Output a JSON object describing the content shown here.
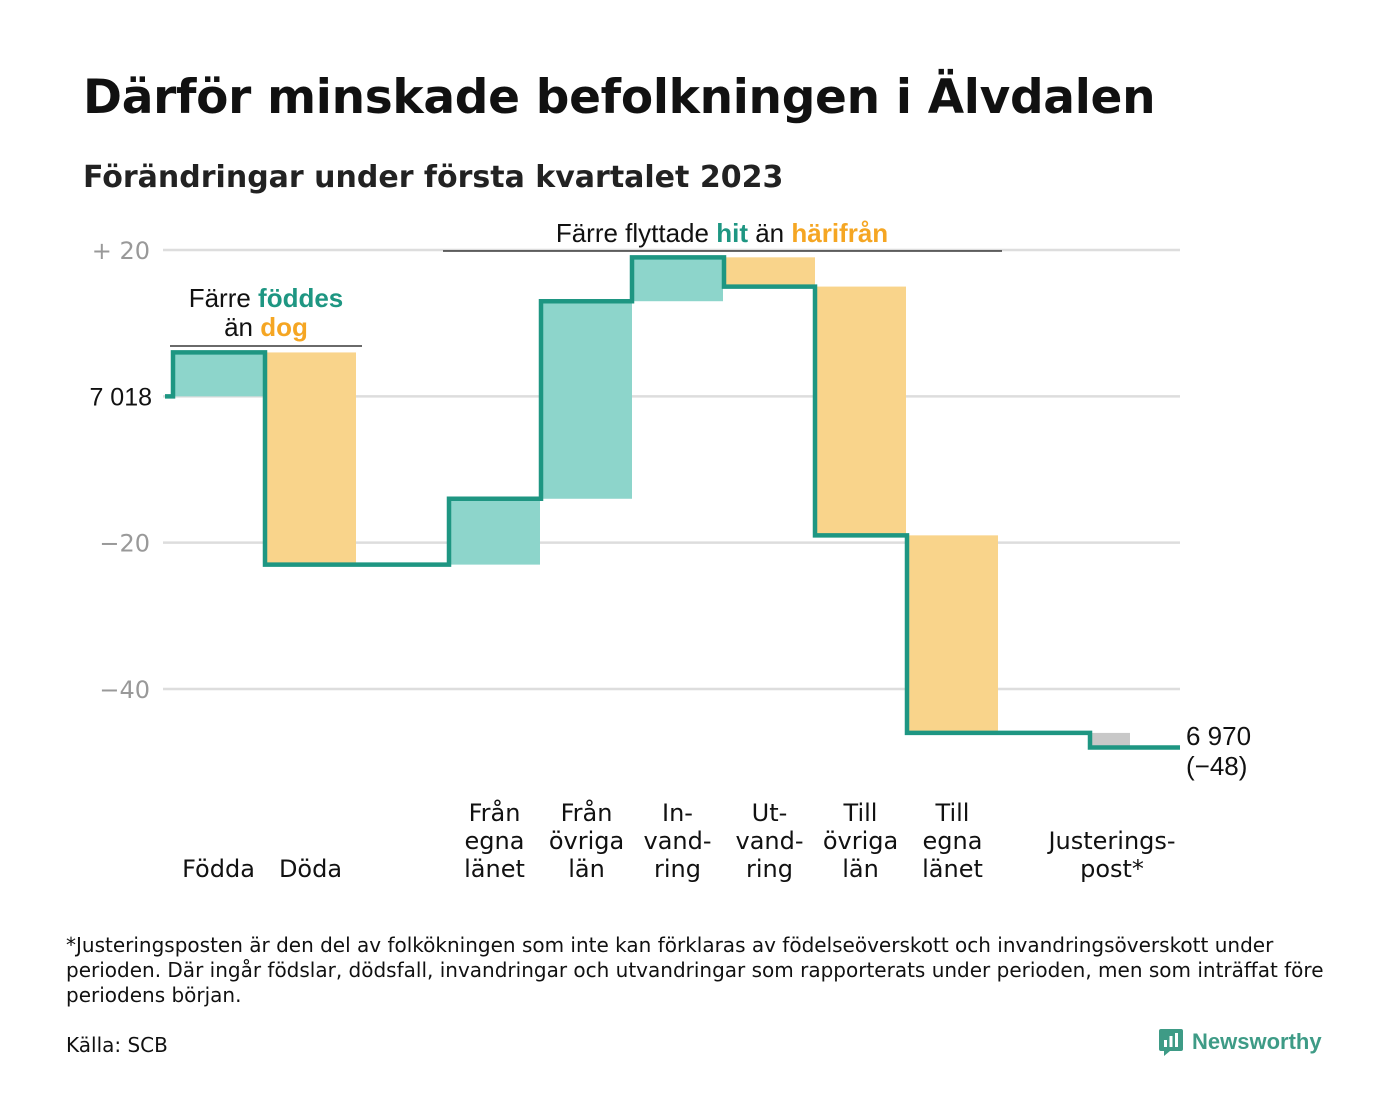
{
  "header": {
    "title": "Därför minskade befolkningen i Älvdalen",
    "subtitle": "Förändringar under första kvartalet 2023"
  },
  "colors": {
    "increase": "#8dd5cb",
    "decrease": "#f9d48b",
    "adjustment": "#c8c8c8",
    "line": "#1e9682",
    "grid": "#dddddd",
    "tick": "#999999",
    "accent_teal": "#1e9682",
    "accent_orange": "#f5a623",
    "brand": "#3e9b86"
  },
  "chart_data": {
    "type": "waterfall",
    "start_value": 7018,
    "start_label": "7 018",
    "end_value": 6970,
    "end_label": "6 970",
    "end_change_label": "(−48)",
    "y_ticks": [
      {
        "value": 20,
        "label": "+ 20"
      },
      {
        "value": -20,
        "label": "−20"
      },
      {
        "value": -40,
        "label": "−40"
      }
    ],
    "ylim": [
      -53,
      23
    ],
    "steps": [
      {
        "label": [
          "Födda"
        ],
        "change": 6,
        "kind": "increase",
        "group": "natural"
      },
      {
        "label": [
          "Döda"
        ],
        "change": -29,
        "kind": "decrease",
        "group": "natural"
      },
      {
        "label": [
          "Från",
          "egna",
          "länet"
        ],
        "change": 9,
        "kind": "increase",
        "group": "migration"
      },
      {
        "label": [
          "Från",
          "övriga",
          "län"
        ],
        "change": 27,
        "kind": "increase",
        "group": "migration"
      },
      {
        "label": [
          "In-",
          "vand-",
          "ring"
        ],
        "change": 6,
        "kind": "increase",
        "group": "migration"
      },
      {
        "label": [
          "Ut-",
          "vand-",
          "ring"
        ],
        "change": -4,
        "kind": "decrease",
        "group": "migration"
      },
      {
        "label": [
          "Till",
          "övriga",
          "län"
        ],
        "change": -34,
        "kind": "decrease",
        "group": "migration"
      },
      {
        "label": [
          "Till",
          "egna",
          "länet"
        ],
        "change": -27,
        "kind": "decrease",
        "group": "migration"
      },
      {
        "label": [
          "Justerings-",
          "post*"
        ],
        "change": -2,
        "kind": "adjustment",
        "group": "adjustment"
      }
    ],
    "annotations": {
      "natural": {
        "line1_pre": "Färre ",
        "line1_hi": "föddes",
        "line2_pre": "än ",
        "line2_hi": "dog"
      },
      "migration": {
        "pre": "Färre flyttade ",
        "hi1": "hit",
        "mid": " än ",
        "hi2": "härifrån"
      }
    }
  },
  "footnote": "*Justeringsposten är den del av folkökningen som inte kan förklaras av födelseöverskott och invandringsöverskott under perioden. Där ingår födslar, dödsfall, invandringar och utvandringar som rapporterats under perioden, men som inträffat före periodens början.",
  "source": "Källa: SCB",
  "brand": {
    "name": "Newsworthy",
    "icon": "newsworthy-logo-icon"
  }
}
